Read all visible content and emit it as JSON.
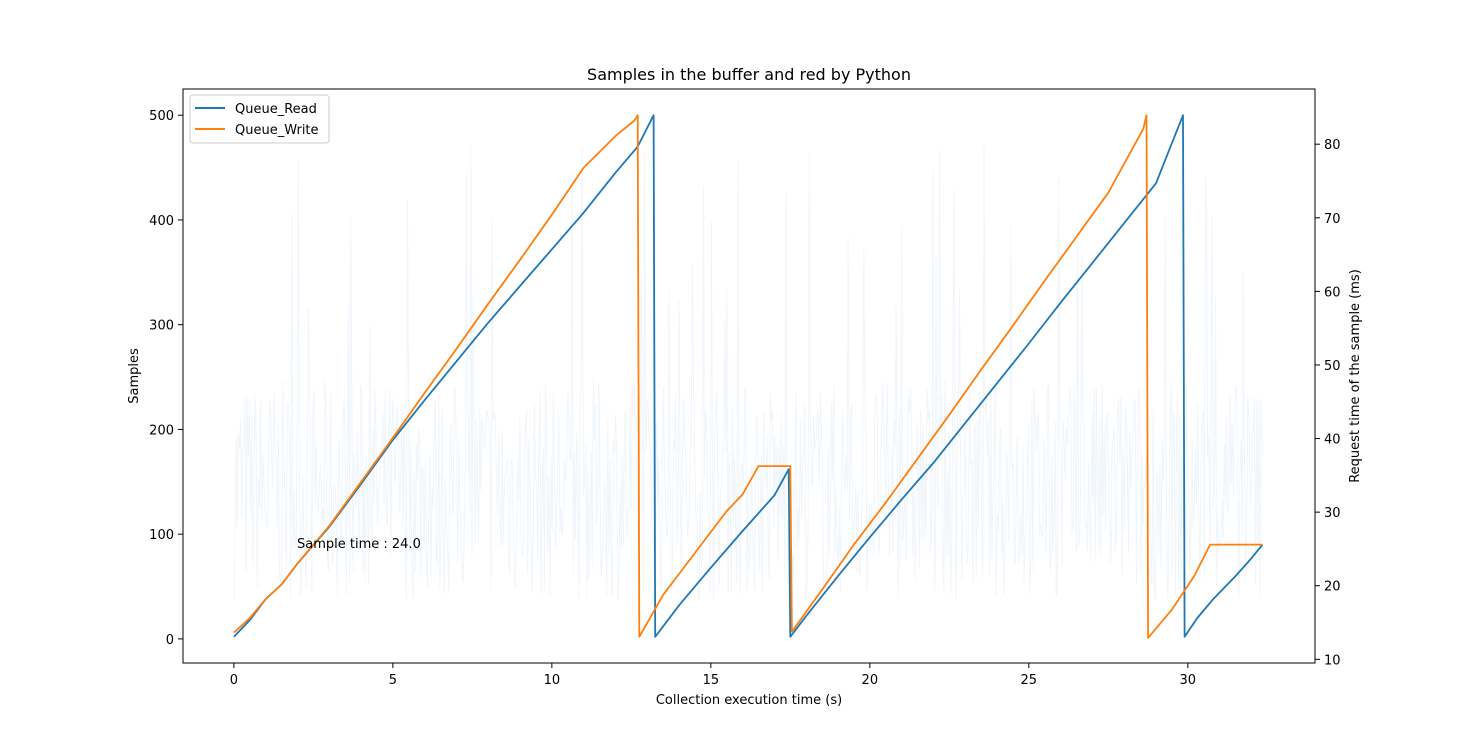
{
  "chart_data": {
    "type": "line",
    "title": "Samples in the buffer and red by Python",
    "xlabel": "Collection execution time (s)",
    "ylabel": "Samples",
    "y2label": "Request time of the sample (ms)",
    "xlim": [
      -1.6,
      34.0
    ],
    "ylim": [
      -23,
      525
    ],
    "y2lim": [
      9.5,
      87.5
    ],
    "xticks": [
      0,
      5,
      10,
      15,
      20,
      25,
      30
    ],
    "yticks": [
      0,
      100,
      200,
      300,
      400,
      500
    ],
    "y2ticks": [
      10,
      20,
      30,
      40,
      50,
      60,
      70,
      80
    ],
    "grid": false,
    "legend_position": "top-left",
    "annotation": {
      "text": "Sample time : 24.0",
      "x": 2.0,
      "y": 90
    },
    "series": [
      {
        "name": "Queue_Read",
        "color": "#1f77b4",
        "axis": "left",
        "x": [
          0.0,
          0.5,
          1.0,
          1.5,
          2.0,
          3.0,
          4.0,
          5.0,
          6.0,
          7.0,
          8.0,
          9.0,
          10.0,
          11.0,
          12.0,
          12.7,
          13.2,
          13.25,
          14.0,
          15.0,
          16.0,
          17.0,
          17.45,
          17.5,
          18.0,
          19.0,
          20.0,
          21.0,
          22.0,
          23.0,
          24.0,
          25.0,
          26.0,
          27.0,
          28.0,
          29.0,
          29.85,
          29.9,
          30.3,
          30.8,
          31.5,
          32.0,
          32.35
        ],
        "y": [
          2,
          18,
          38,
          52,
          72,
          107,
          148,
          190,
          228,
          265,
          302,
          337,
          372,
          407,
          445,
          470,
          500,
          2,
          32,
          68,
          103,
          137,
          162,
          2,
          22,
          60,
          97,
          133,
          168,
          206,
          244,
          282,
          321,
          359,
          397,
          435,
          500,
          2,
          20,
          38,
          60,
          77,
          90
        ]
      },
      {
        "name": "Queue_Write",
        "color": "#ff7f0e",
        "axis": "left",
        "x": [
          0.0,
          0.5,
          1.0,
          1.5,
          2.0,
          3.0,
          4.0,
          5.0,
          6.0,
          7.0,
          8.0,
          9.0,
          10.0,
          11.0,
          12.0,
          12.6,
          12.7,
          12.75,
          13.5,
          14.5,
          15.5,
          16.0,
          16.5,
          17.5,
          17.55,
          18.5,
          19.5,
          20.5,
          21.5,
          22.5,
          23.5,
          24.5,
          25.5,
          26.5,
          27.5,
          28.6,
          28.7,
          28.75,
          29.5,
          30.2,
          30.7,
          31.5,
          32.35
        ],
        "y": [
          6,
          20,
          38,
          52,
          72,
          108,
          150,
          192,
          235,
          277,
          320,
          362,
          405,
          450,
          480,
          495,
          500,
          2,
          42,
          82,
          122,
          138,
          165,
          165,
          7,
          47,
          90,
          130,
          172,
          214,
          257,
          299,
          342,
          384,
          426,
          487,
          500,
          1,
          28,
          60,
          90,
          90,
          90
        ]
      }
    ]
  }
}
